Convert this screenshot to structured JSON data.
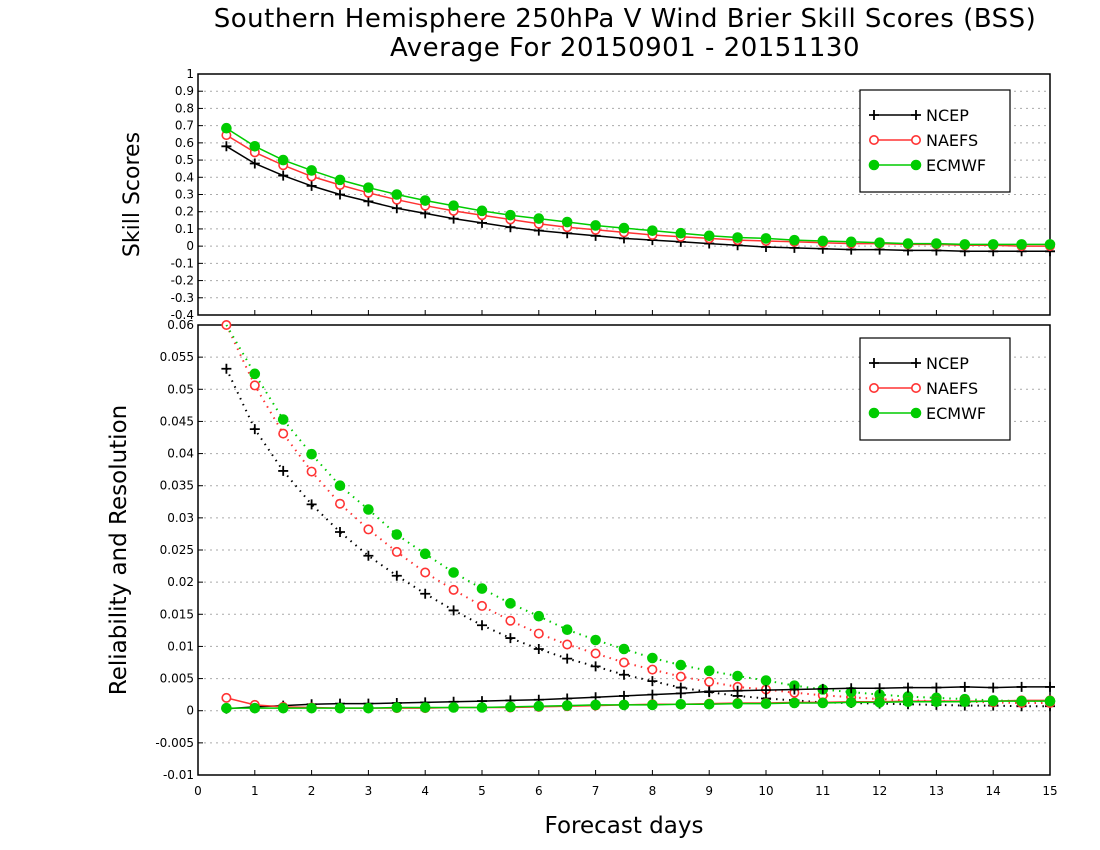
{
  "title_line1": "Southern Hemisphere 250hPa V Wind Brier Skill Scores (BSS)",
  "title_line2": "Average For 20150901 - 20151130",
  "chart_data": [
    {
      "type": "line",
      "ylabel": "Skill Scores",
      "xlabel": "",
      "ylim": [
        -0.4,
        1
      ],
      "yticks": [
        "-0.4",
        "-0.3",
        "-0.2",
        "-0.1",
        "0",
        "0.1",
        "0.2",
        "0.3",
        "0.4",
        "0.5",
        "0.6",
        "0.7",
        "0.8",
        "0.9",
        "1"
      ],
      "grid": true,
      "legend": "top-right",
      "x": [
        0.5,
        1,
        1.5,
        2,
        2.5,
        3,
        3.5,
        4,
        4.5,
        5,
        5.5,
        6,
        6.5,
        7,
        7.5,
        8,
        8.5,
        9,
        9.5,
        10,
        10.5,
        11,
        11.5,
        12,
        12.5,
        13,
        13.5,
        14,
        14.5,
        15
      ],
      "series": [
        {
          "name": "NCEP",
          "color": "#000000",
          "marker": "plus",
          "values": [
            0.58,
            0.48,
            0.41,
            0.35,
            0.3,
            0.26,
            0.22,
            0.19,
            0.16,
            0.135,
            0.11,
            0.09,
            0.075,
            0.06,
            0.045,
            0.035,
            0.025,
            0.015,
            0.005,
            -0.005,
            -0.01,
            -0.015,
            -0.02,
            -0.02,
            -0.025,
            -0.025,
            -0.03,
            -0.03,
            -0.03,
            -0.03
          ]
        },
        {
          "name": "NAEFS",
          "color": "#ff3333",
          "marker": "open-circle",
          "values": [
            0.645,
            0.545,
            0.47,
            0.405,
            0.355,
            0.31,
            0.27,
            0.235,
            0.205,
            0.18,
            0.155,
            0.13,
            0.11,
            0.095,
            0.08,
            0.065,
            0.055,
            0.045,
            0.035,
            0.03,
            0.025,
            0.02,
            0.015,
            0.015,
            0.01,
            0.01,
            0.005,
            0.005,
            0.0,
            0.0
          ]
        },
        {
          "name": "ECMWF",
          "color": "#00cc00",
          "marker": "filled-circle",
          "values": [
            0.685,
            0.58,
            0.5,
            0.44,
            0.385,
            0.34,
            0.3,
            0.265,
            0.235,
            0.205,
            0.18,
            0.16,
            0.14,
            0.12,
            0.105,
            0.09,
            0.075,
            0.06,
            0.05,
            0.045,
            0.035,
            0.03,
            0.025,
            0.02,
            0.015,
            0.015,
            0.01,
            0.01,
            0.01,
            0.01
          ]
        }
      ]
    },
    {
      "type": "line",
      "ylabel": "Reliability and Resolution",
      "xlabel": "Forecast days",
      "ylim": [
        -0.01,
        0.06
      ],
      "xlim": [
        0,
        15
      ],
      "yticks": [
        "-0.01",
        "-0.005",
        "0",
        "0.005",
        "0.01",
        "0.015",
        "0.02",
        "0.025",
        "0.03",
        "0.035",
        "0.04",
        "0.045",
        "0.05",
        "0.055",
        "0.06"
      ],
      "xticks": [
        "0",
        "1",
        "2",
        "3",
        "4",
        "5",
        "6",
        "7",
        "8",
        "9",
        "10",
        "11",
        "12",
        "13",
        "14",
        "15"
      ],
      "grid": true,
      "legend": "top-right",
      "x": [
        0.5,
        1,
        1.5,
        2,
        2.5,
        3,
        3.5,
        4,
        4.5,
        5,
        5.5,
        6,
        6.5,
        7,
        7.5,
        8,
        8.5,
        9,
        9.5,
        10,
        10.5,
        11,
        11.5,
        12,
        12.5,
        13,
        13.5,
        14,
        14.5,
        15
      ],
      "series": [
        {
          "name": "NCEP",
          "color": "#000000",
          "marker": "plus",
          "style": "dotted",
          "role": "resolution",
          "values": [
            0.0532,
            0.0438,
            0.0373,
            0.0321,
            0.0278,
            0.0241,
            0.021,
            0.0182,
            0.0156,
            0.0133,
            0.0113,
            0.0096,
            0.0081,
            0.0069,
            0.0056,
            0.0046,
            0.0036,
            0.0029,
            0.0023,
            0.0019,
            0.0016,
            0.0013,
            0.0012,
            0.0011,
            0.001,
            0.0009,
            0.0008,
            0.0008,
            0.0007,
            0.0007
          ]
        },
        {
          "name": "NAEFS",
          "color": "#ff3333",
          "marker": "open-circle",
          "style": "dotted",
          "role": "resolution",
          "values": [
            0.06,
            0.0506,
            0.0431,
            0.0372,
            0.0322,
            0.0282,
            0.0247,
            0.0215,
            0.0188,
            0.0163,
            0.014,
            0.012,
            0.0103,
            0.0089,
            0.0075,
            0.0064,
            0.0053,
            0.0045,
            0.0037,
            0.0033,
            0.0028,
            0.0024,
            0.0021,
            0.0018,
            0.0016,
            0.0015,
            0.0014,
            0.0013,
            0.0012,
            0.0012
          ]
        },
        {
          "name": "ECMWF",
          "color": "#00cc00",
          "marker": "filled-circle",
          "style": "dotted",
          "role": "resolution",
          "values": [
            0.063,
            0.0524,
            0.0453,
            0.0399,
            0.035,
            0.0313,
            0.0274,
            0.0244,
            0.0215,
            0.019,
            0.0167,
            0.0147,
            0.0126,
            0.011,
            0.0096,
            0.0082,
            0.0071,
            0.0062,
            0.0054,
            0.0047,
            0.0039,
            0.0033,
            0.0029,
            0.0025,
            0.0022,
            0.002,
            0.0018,
            0.0016,
            0.0015,
            0.0015
          ]
        },
        {
          "name": "NCEP",
          "color": "#000000",
          "marker": "plus",
          "style": "solid",
          "role": "reliability",
          "values": [
            0.0003,
            0.0006,
            0.0008,
            0.001,
            0.0011,
            0.0011,
            0.0012,
            0.0013,
            0.0014,
            0.0015,
            0.0016,
            0.0017,
            0.0019,
            0.0021,
            0.0023,
            0.0025,
            0.0027,
            0.003,
            0.0031,
            0.0032,
            0.0033,
            0.0034,
            0.0035,
            0.0035,
            0.0036,
            0.0036,
            0.0037,
            0.0036,
            0.0037,
            0.0037
          ]
        },
        {
          "name": "NAEFS",
          "color": "#ff3333",
          "marker": "open-circle",
          "style": "solid",
          "role": "reliability",
          "values": [
            0.002,
            0.0009,
            0.0006,
            0.0005,
            0.0004,
            0.0004,
            0.0004,
            0.0004,
            0.0005,
            0.0005,
            0.0005,
            0.0006,
            0.0007,
            0.0008,
            0.0009,
            0.001,
            0.001,
            0.0011,
            0.0012,
            0.0012,
            0.0013,
            0.0013,
            0.0014,
            0.0014,
            0.0015,
            0.0015,
            0.0015,
            0.0015,
            0.0016,
            0.0016
          ]
        },
        {
          "name": "ECMWF",
          "color": "#00cc00",
          "marker": "filled-circle",
          "style": "solid",
          "role": "reliability",
          "values": [
            0.0004,
            0.0004,
            0.0004,
            0.0004,
            0.0004,
            0.0004,
            0.0005,
            0.0005,
            0.0005,
            0.0005,
            0.0006,
            0.0007,
            0.0008,
            0.0009,
            0.0009,
            0.0009,
            0.001,
            0.001,
            0.0011,
            0.0011,
            0.0012,
            0.0012,
            0.0013,
            0.0013,
            0.0014,
            0.0014,
            0.0014,
            0.0015,
            0.0015,
            0.0015
          ]
        }
      ]
    }
  ],
  "legend_items": [
    "NCEP",
    "NAEFS",
    "ECMWF"
  ]
}
